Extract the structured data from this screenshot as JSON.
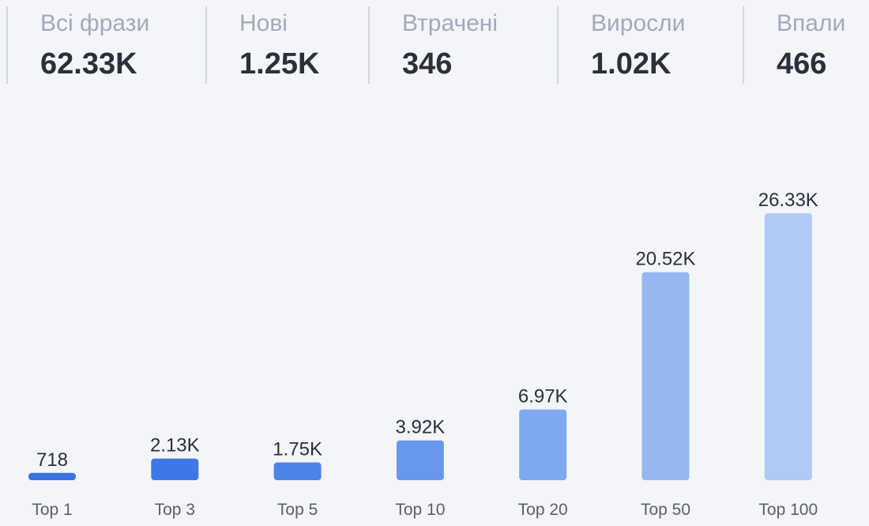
{
  "stats": [
    {
      "label": "Всі фрази",
      "value": "62.33K"
    },
    {
      "label": "Нові",
      "value": "1.25K"
    },
    {
      "label": "Втрачені",
      "value": "346"
    },
    {
      "label": "Виросли",
      "value": "1.02K"
    },
    {
      "label": "Впали",
      "value": "466"
    }
  ],
  "chart_data": {
    "type": "bar",
    "categories": [
      "Top 1",
      "Top 3",
      "Top 5",
      "Top 10",
      "Top 20",
      "Top 50",
      "Top 100"
    ],
    "values": [
      718,
      2130,
      1750,
      3920,
      6970,
      20520,
      26330
    ],
    "value_labels": [
      "718",
      "2.13K",
      "1.75K",
      "3.92K",
      "6.97K",
      "20.52K",
      "26.33K"
    ],
    "bar_colors": [
      "#3a72e6",
      "#3d78e8",
      "#4d84ea",
      "#6898ee",
      "#7ea8f0",
      "#95b8f3",
      "#aecaf5"
    ],
    "title": "",
    "xlabel": "",
    "ylabel": "",
    "ylim": [
      0,
      26330
    ],
    "grid": false,
    "legend": "none"
  }
}
